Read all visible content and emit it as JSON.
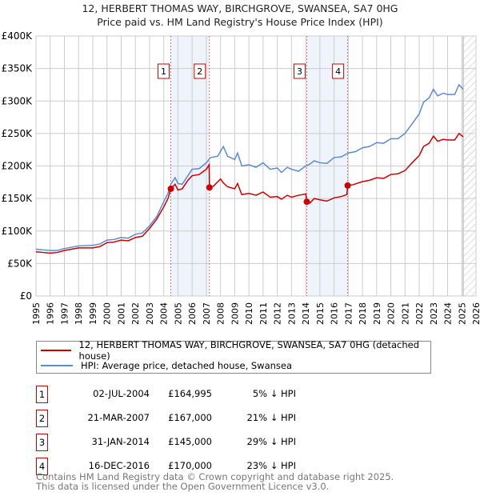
{
  "chart_data": {
    "type": "line",
    "title": "12, HERBERT THOMAS WAY, BIRCHGROVE, SWANSEA, SA7 0HG",
    "subtitle": "Price paid vs. HM Land Registry's House Price Index (HPI)",
    "xlim": [
      1995,
      2026
    ],
    "ylim": [
      0,
      400000
    ],
    "y_ticks": [
      {
        "v": 0,
        "label": "£0"
      },
      {
        "v": 50000,
        "label": "£50K"
      },
      {
        "v": 100000,
        "label": "£100K"
      },
      {
        "v": 150000,
        "label": "£150K"
      },
      {
        "v": 200000,
        "label": "£200K"
      },
      {
        "v": 250000,
        "label": "£250K"
      },
      {
        "v": 300000,
        "label": "£300K"
      },
      {
        "v": 350000,
        "label": "£350K"
      },
      {
        "v": 400000,
        "label": "£400K"
      }
    ],
    "x_ticks": [
      "1995",
      "1996",
      "1997",
      "1998",
      "1999",
      "2000",
      "2001",
      "2002",
      "2003",
      "2004",
      "2005",
      "2006",
      "2007",
      "2008",
      "2009",
      "2010",
      "2011",
      "2012",
      "2013",
      "2014",
      "2015",
      "2016",
      "2017",
      "2018",
      "2019",
      "2020",
      "2021",
      "2022",
      "2023",
      "2024",
      "2025",
      "2026"
    ],
    "grid": true,
    "hatched_from": 2025.1,
    "series": [
      {
        "name": "12, HERBERT THOMAS WAY, BIRCHGROVE, SWANSEA, SA7 0HG (detached house)",
        "color": "#cc0000",
        "x": [
          1995,
          1995.5,
          1996,
          1996.5,
          1997,
          1997.5,
          1998,
          1999,
          1999.5,
          2000,
          2000.5,
          2001,
          2001.5,
          2002,
          2002.5,
          2003,
          2003.5,
          2004,
          2004.3,
          2004.5,
          2004.8,
          2005,
          2005.3,
          2005.7,
          2006,
          2006.5,
          2007,
          2007.2,
          2007.22,
          2007.5,
          2008,
          2008.2,
          2008.5,
          2009,
          2009.2,
          2009.5,
          2010,
          2010.5,
          2011,
          2011.5,
          2012,
          2012.3,
          2012.7,
          2013,
          2013.5,
          2014,
          2014.08,
          2014.3,
          2014.6,
          2015,
          2015.5,
          2016,
          2016.5,
          2016.9,
          2016.96,
          2017.3,
          2018,
          2018.5,
          2019,
          2019.5,
          2020,
          2020.5,
          2021,
          2021.5,
          2022,
          2022.3,
          2022.7,
          2023,
          2023.3,
          2023.7,
          2024,
          2024.5,
          2024.8,
          2025.1
        ],
        "y": [
          68000,
          67000,
          66000,
          67000,
          70000,
          72000,
          74000,
          74000,
          76000,
          82000,
          83000,
          86000,
          85000,
          90000,
          92000,
          104000,
          118000,
          137000,
          150000,
          164995,
          172000,
          163000,
          165000,
          178000,
          185000,
          187000,
          195000,
          202000,
          167000,
          169000,
          180000,
          174000,
          168000,
          165000,
          173000,
          156000,
          158000,
          155000,
          160000,
          152000,
          153000,
          149000,
          155000,
          152000,
          155000,
          157000,
          145000,
          143000,
          150000,
          148000,
          146000,
          151000,
          153000,
          156000,
          170000,
          171000,
          176000,
          178000,
          182000,
          181000,
          187000,
          188000,
          193000,
          205000,
          216000,
          230000,
          235000,
          246000,
          238000,
          241000,
          240000,
          240000,
          250000,
          245000
        ]
      },
      {
        "name": "HPI: Average price, detached house, Swansea",
        "color": "#5b8bd0",
        "x": [
          1995,
          1995.5,
          1996,
          1996.5,
          1997,
          1997.5,
          1998,
          1999,
          1999.5,
          2000,
          2000.5,
          2001,
          2001.5,
          2002,
          2002.5,
          2003,
          2003.5,
          2004,
          2004.3,
          2004.5,
          2004.8,
          2005,
          2005.3,
          2005.7,
          2006,
          2006.5,
          2007,
          2007.3,
          2007.8,
          2008.2,
          2008.5,
          2009,
          2009.2,
          2009.5,
          2010,
          2010.5,
          2011,
          2011.5,
          2012,
          2012.3,
          2012.7,
          2013,
          2013.5,
          2014,
          2014.3,
          2014.6,
          2015,
          2015.5,
          2016,
          2016.5,
          2017,
          2017.5,
          2018,
          2018.5,
          2019,
          2019.5,
          2020,
          2020.5,
          2021,
          2021.5,
          2022,
          2022.3,
          2022.7,
          2023,
          2023.3,
          2023.7,
          2024,
          2024.5,
          2024.8,
          2025.1
        ],
        "y": [
          72000,
          71000,
          70000,
          70000,
          73000,
          75000,
          77000,
          78000,
          80000,
          86000,
          87000,
          90000,
          89000,
          95000,
          97000,
          108000,
          122000,
          145000,
          158000,
          172000,
          182000,
          173000,
          172000,
          185000,
          195000,
          196000,
          205000,
          213000,
          215000,
          230000,
          215000,
          210000,
          220000,
          200000,
          202000,
          198000,
          205000,
          195000,
          197000,
          190000,
          198000,
          195000,
          192000,
          200000,
          203000,
          208000,
          205000,
          204000,
          213000,
          214000,
          220000,
          222000,
          228000,
          230000,
          236000,
          235000,
          242000,
          242000,
          250000,
          265000,
          280000,
          298000,
          305000,
          318000,
          308000,
          312000,
          310000,
          310000,
          325000,
          318000
        ]
      }
    ],
    "sales": [
      {
        "n": "1",
        "x": 2004.5,
        "price": 164995,
        "date": "02-JUL-2004",
        "price_label": "£164,995",
        "hpi": "5% ↓ HPI"
      },
      {
        "n": "2",
        "x": 2007.22,
        "price": 167000,
        "date": "21-MAR-2007",
        "price_label": "£167,000",
        "hpi": "21% ↓ HPI"
      },
      {
        "n": "3",
        "x": 2014.08,
        "price": 145000,
        "date": "31-JAN-2014",
        "price_label": "£145,000",
        "hpi": "29% ↓ HPI"
      },
      {
        "n": "4",
        "x": 2016.96,
        "price": 170000,
        "date": "16-DEC-2016",
        "price_label": "£170,000",
        "hpi": "23% ↓ HPI"
      }
    ]
  },
  "footer": {
    "line1": "Contains HM Land Registry data © Crown copyright and database right 2025.",
    "line2": "This data is licensed under the Open Government Licence v3.0."
  }
}
